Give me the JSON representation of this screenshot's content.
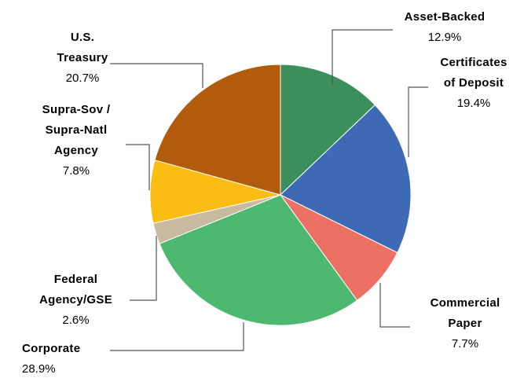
{
  "chart_data": {
    "type": "pie",
    "categories": [
      "Asset-Backed",
      "Certificates\nof Deposit",
      "Commercial\nPaper",
      "Corporate",
      "Federal\nAgency/GSE",
      "Supra-Sov /\nSupra-Natl\nAgency",
      "U.S.\nTreasury"
    ],
    "values": [
      12.9,
      19.4,
      7.7,
      28.9,
      2.6,
      7.8,
      20.7
    ],
    "value_labels": [
      "12.9%",
      "19.4%",
      "7.7%",
      "28.9%",
      "2.6%",
      "7.8%",
      "20.7%"
    ],
    "colors": [
      "#3a8f5a",
      "#3d69b5",
      "#ec7063",
      "#4cb870",
      "#c9b99e",
      "#fbbd13",
      "#b35b0c"
    ]
  }
}
